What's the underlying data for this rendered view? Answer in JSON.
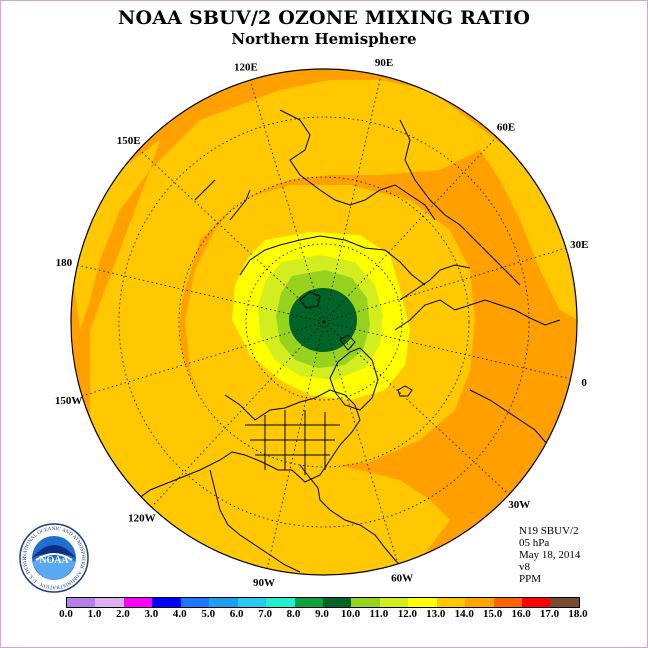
{
  "title": "NOAA SBUV/2 OZONE MIXING RATIO",
  "subtitle": "Northern Hemisphere",
  "longitude_labels": [
    "90E",
    "60E",
    "30E",
    "0",
    "30W",
    "60W",
    "90W",
    "120W",
    "150W",
    "180",
    "150E",
    "120E"
  ],
  "info": {
    "satellite": "N19 SBUV/2",
    "level": "05 hPa",
    "date": "May 18, 2014",
    "version": "v8",
    "units": "PPM"
  },
  "logo": {
    "text": "NOAA",
    "ring_text": "NATIONAL OCEANIC AND ATMOSPHERIC ADMINISTRATION · U.S. DEPARTMENT OF COMMERCE"
  },
  "colorbar": {
    "labels": [
      "0.0",
      "1.0",
      "2.0",
      "3.0",
      "4.0",
      "5.0",
      "6.0",
      "7.0",
      "8.0",
      "9.0",
      "10.0",
      "11.0",
      "12.0",
      "13.0",
      "14.0",
      "15.0",
      "16.0",
      "17.0",
      "18.0"
    ],
    "colors": [
      "#b57ee8",
      "#dcb3f0",
      "#ff00ff",
      "#0000ff",
      "#1e78ff",
      "#1ea0f0",
      "#28c8f0",
      "#20f0d0",
      "#10a040",
      "#006428",
      "#96d21e",
      "#d2ee1e",
      "#ffff00",
      "#ffc800",
      "#ffa500",
      "#ff6400",
      "#ff0000",
      "#7a4a30"
    ]
  },
  "map_colors": {
    "ocean_outer": "#ffa000",
    "band_13": "#ffc800",
    "band_12": "#ffff00",
    "band_11": "#d2ee1e",
    "band_10": "#96d21e",
    "band_9": "#006428"
  }
}
